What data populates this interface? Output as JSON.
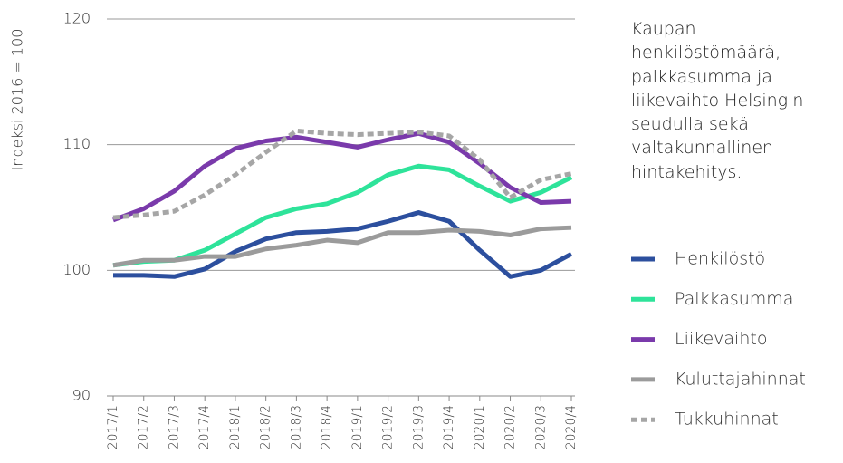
{
  "chart_data": {
    "type": "line",
    "title": "Kaupan henkilöstömäärä, palkkasumma ja liikevaihto Helsingin seudulla sekä valtakunnallinen hintakehitys.",
    "y_label": "Indeksi 2016 = 100",
    "categories": [
      "2017/1",
      "2017/2",
      "2017/3",
      "2017/4",
      "2018/1",
      "2018/2",
      "2018/3",
      "2018/4",
      "2019/1",
      "2019/2",
      "2019/3",
      "2019/4",
      "2020/1",
      "2020/2",
      "2020/3",
      "2020/4"
    ],
    "series": [
      {
        "name": "Henkilöstö",
        "color": "#2c4f9e",
        "dash": false,
        "values": [
          99.6,
          99.6,
          99.5,
          100.1,
          101.5,
          102.5,
          103.0,
          103.1,
          103.3,
          103.9,
          104.6,
          103.9,
          101.6,
          99.5,
          100.0,
          101.3
        ]
      },
      {
        "name": "Palkkasumma",
        "color": "#2ee39a",
        "dash": false,
        "values": [
          100.4,
          100.7,
          100.8,
          101.6,
          102.9,
          104.2,
          104.9,
          105.3,
          106.2,
          107.6,
          108.3,
          108.0,
          106.7,
          105.5,
          106.2,
          107.4
        ]
      },
      {
        "name": "Liikevaihto",
        "color": "#7a3aab",
        "dash": false,
        "values": [
          104.0,
          104.9,
          106.3,
          108.3,
          109.7,
          110.3,
          110.6,
          110.2,
          109.8,
          110.4,
          110.9,
          110.2,
          108.5,
          106.6,
          105.4,
          105.5
        ]
      },
      {
        "name": "Kuluttajahinnat",
        "color": "#9b9b9b",
        "dash": false,
        "values": [
          100.4,
          100.8,
          100.8,
          101.1,
          101.1,
          101.7,
          102.0,
          102.4,
          102.2,
          103.0,
          103.0,
          103.2,
          103.1,
          102.8,
          103.3,
          103.4
        ]
      },
      {
        "name": "Tukkuhinnat",
        "color": "#a6a6a6",
        "dash": true,
        "values": [
          104.2,
          104.4,
          104.7,
          106.0,
          107.6,
          109.4,
          111.1,
          110.9,
          110.8,
          110.9,
          111.0,
          110.7,
          108.8,
          105.8,
          107.2,
          107.7
        ]
      }
    ],
    "ylim": [
      90,
      120
    ],
    "yticks": [
      90,
      100,
      110,
      120
    ],
    "grid": true
  }
}
